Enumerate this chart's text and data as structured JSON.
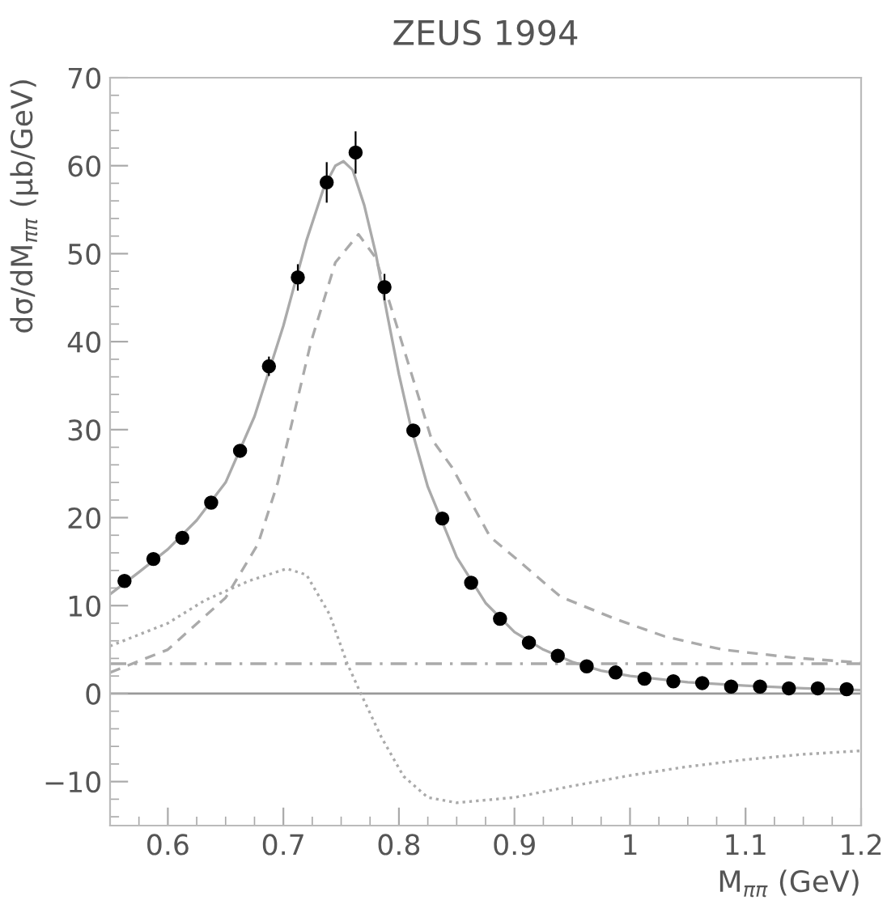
{
  "chart_data": {
    "type": "scatter",
    "title": "ZEUS 1994",
    "xlabel": "M$_{ππ}$ (GeV)",
    "ylabel": "dσ/dM$_{ππ}$ (μb/GeV)",
    "xlim": [
      0.55,
      1.2
    ],
    "ylim": [
      -15,
      70
    ],
    "xticks": [
      0.6,
      0.7,
      0.8,
      0.9,
      1,
      1.1,
      1.2
    ],
    "yticks": [
      -10,
      0,
      10,
      20,
      30,
      40,
      50,
      60,
      70
    ],
    "grid": false,
    "legend": false,
    "ref_lines": [
      {
        "axis": "y",
        "value": 0,
        "color": "#999999",
        "line_style": "solid"
      }
    ],
    "series": [
      {
        "type": "line",
        "color": "#aaaaaa",
        "line_style": "solid",
        "marker": "none",
        "x": [
          0.55,
          0.575,
          0.6,
          0.625,
          0.65,
          0.675,
          0.7,
          0.72,
          0.735,
          0.745,
          0.752,
          0.76,
          0.77,
          0.78,
          0.79,
          0.8,
          0.81,
          0.825,
          0.85,
          0.875,
          0.9,
          0.925,
          0.95,
          0.975,
          1.0,
          1.05,
          1.1,
          1.15,
          1.2
        ],
        "values": [
          11.3,
          13.8,
          16.4,
          19.7,
          24.0,
          31.5,
          41.8,
          51.5,
          57.5,
          60.0,
          60.5,
          59.5,
          55.5,
          50,
          43,
          36.3,
          30.5,
          23.5,
          15.5,
          10.3,
          7.0,
          5.0,
          3.6,
          2.6,
          2.0,
          1.3,
          0.9,
          0.6,
          0.4
        ]
      },
      {
        "type": "line",
        "color": "#aaaaaa",
        "line_style": "dashed",
        "marker": "none",
        "x": [
          0.55,
          0.6,
          0.65,
          0.678,
          0.695,
          0.724,
          0.745,
          0.765,
          0.78,
          0.8,
          0.828,
          0.846,
          0.879,
          0.9,
          0.94,
          0.987,
          1.03,
          1.08,
          1.14,
          1.2
        ],
        "values": [
          2.4,
          5,
          10.9,
          17,
          23.9,
          40,
          49,
          52.2,
          49.5,
          41,
          29,
          25.7,
          17.8,
          15.5,
          11,
          8.5,
          6.5,
          5.0,
          4.1,
          3.5
        ]
      },
      {
        "type": "line",
        "color": "#aaaaaa",
        "line_style": "dotted",
        "marker": "none",
        "x": [
          0.55,
          0.6,
          0.632,
          0.67,
          0.703,
          0.72,
          0.74,
          0.755,
          0.767,
          0.785,
          0.804,
          0.825,
          0.85,
          0.9,
          0.95,
          1.0,
          1.05,
          1.1,
          1.15,
          1.2
        ],
        "values": [
          5.4,
          8,
          10.6,
          12.8,
          14.2,
          13.5,
          9,
          3.5,
          0,
          -5,
          -9.4,
          -11.8,
          -12.4,
          -11.8,
          -10.5,
          -9.3,
          -8.3,
          -7.5,
          -6.9,
          -6.5
        ]
      },
      {
        "type": "line",
        "color": "#aaaaaa",
        "line_style": "dashdot",
        "marker": "none",
        "x": [
          0.55,
          1.2
        ],
        "values": [
          3.4,
          3.4
        ]
      },
      {
        "color": "#000000",
        "marker": "circle",
        "x": [
          0.5625,
          0.5875,
          0.6125,
          0.6375,
          0.6625,
          0.6875,
          0.7125,
          0.7375,
          0.7625,
          0.7875,
          0.8125,
          0.8375,
          0.8625,
          0.8875,
          0.9125,
          0.9375,
          0.9625,
          0.9875,
          1.0125,
          1.0375,
          1.0625,
          1.0875,
          1.1125,
          1.1375,
          1.1625,
          1.1875
        ],
        "values": [
          12.8,
          15.3,
          17.7,
          21.7,
          27.6,
          37.2,
          47.3,
          58.1,
          61.5,
          46.2,
          29.9,
          19.9,
          12.6,
          8.5,
          5.8,
          4.3,
          3.1,
          2.4,
          1.7,
          1.4,
          1.2,
          0.8,
          0.8,
          0.6,
          0.6,
          0.5
        ],
        "errors": [
          null,
          null,
          null,
          null,
          null,
          1.0,
          1.4,
          2.2,
          2.3,
          1.4,
          null,
          null,
          null,
          null,
          null,
          null,
          null,
          null,
          null,
          null,
          null,
          null,
          null,
          null,
          null,
          null
        ]
      }
    ]
  }
}
